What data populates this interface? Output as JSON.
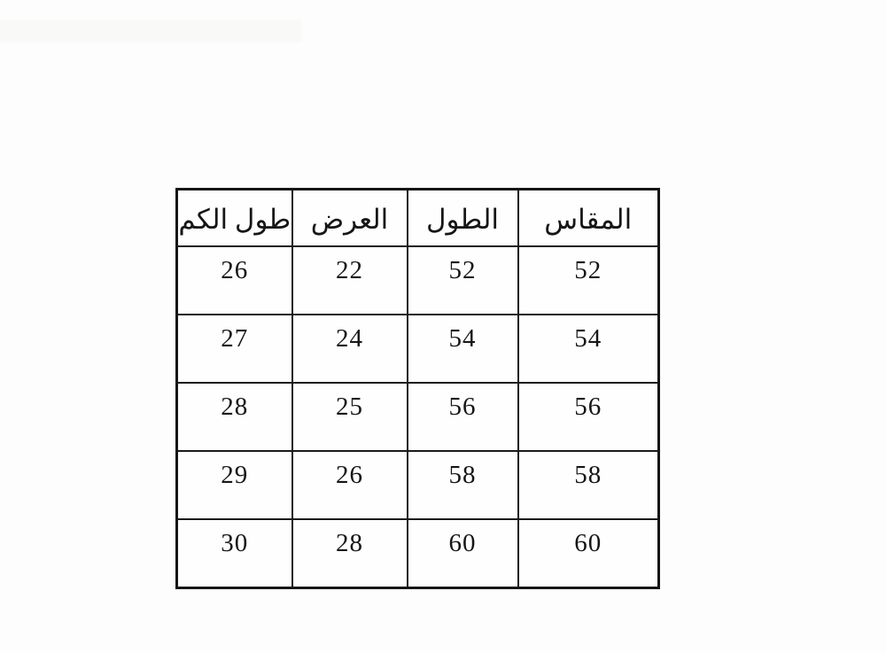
{
  "page": {
    "background_color": "#fdfdfd",
    "description": "Scanned clothing size chart table with Arabic headers"
  },
  "table": {
    "direction": "rtl",
    "border_color": "#1b1b1b",
    "columns": [
      {
        "key": "size",
        "label": "المقاس"
      },
      {
        "key": "length",
        "label": "الطول"
      },
      {
        "key": "width",
        "label": "العرض"
      },
      {
        "key": "sleeve_length",
        "label": "طول الكم"
      }
    ],
    "rows": [
      [
        "52",
        "52",
        "22",
        "26"
      ],
      [
        "54",
        "54",
        "24",
        "27"
      ],
      [
        "56",
        "56",
        "25",
        "28"
      ],
      [
        "58",
        "58",
        "26",
        "29"
      ],
      [
        "60",
        "60",
        "28",
        "30"
      ]
    ]
  }
}
